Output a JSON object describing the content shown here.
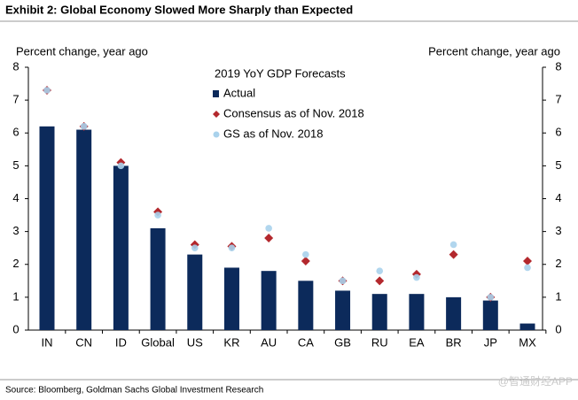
{
  "chart_data": {
    "type": "bar",
    "title": "Exhibit 2: Global Economy Slowed More Sharply than Expected",
    "ylabel": "Percent change, year ago",
    "y2label": "Percent change, year ago",
    "legend_title": "2019 YoY GDP Forecasts",
    "legend": "top-center",
    "categories": [
      "IN",
      "CN",
      "ID",
      "Global",
      "US",
      "KR",
      "AU",
      "CA",
      "GB",
      "RU",
      "EA",
      "BR",
      "JP",
      "MX"
    ],
    "series": [
      {
        "name": "Actual",
        "type": "bar",
        "color": "#0c2a5b",
        "values": [
          6.2,
          6.1,
          5.0,
          3.1,
          2.3,
          1.9,
          1.8,
          1.5,
          1.2,
          1.1,
          1.1,
          1.0,
          0.9,
          0.2
        ]
      },
      {
        "name": "Consensus as of Nov. 2018",
        "type": "diamond",
        "color": "#b3282d",
        "values": [
          7.3,
          6.2,
          5.1,
          3.6,
          2.6,
          2.55,
          2.8,
          2.1,
          1.5,
          1.5,
          1.7,
          2.3,
          1.0,
          2.1
        ]
      },
      {
        "name": "GS as of Nov. 2018",
        "type": "circle",
        "color": "#a9d2ec",
        "values": [
          7.3,
          6.2,
          5.0,
          3.5,
          2.5,
          2.5,
          3.1,
          2.3,
          1.5,
          1.8,
          1.6,
          2.6,
          1.0,
          1.9
        ]
      }
    ],
    "ylim": [
      0,
      8
    ],
    "yticks": [
      0,
      1,
      2,
      3,
      4,
      5,
      6,
      7,
      8
    ],
    "y2lim": [
      0,
      8
    ],
    "y2ticks": [
      0,
      1,
      2,
      3,
      4,
      5,
      6,
      7,
      8
    ],
    "source": "Source: Bloomberg, Goldman Sachs Global Investment Research",
    "watermark": "@智通财经APP"
  }
}
